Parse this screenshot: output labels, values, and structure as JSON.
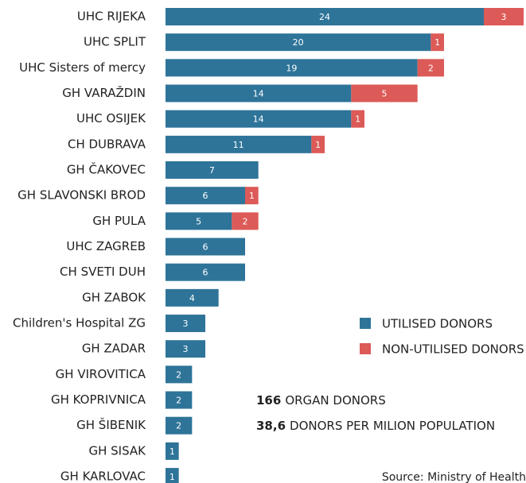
{
  "chart_data": {
    "type": "stacked-barh",
    "categories": [
      "UHC RIJEKA",
      "UHC SPLIT",
      "UHC Sisters of mercy",
      "GH VARAŽDIN",
      "UHC OSIJEK",
      "CH DUBRAVA",
      "GH ČAKOVEC",
      "GH SLAVONSKI BROD",
      "GH PULA",
      "UHC ZAGREB",
      "CH SVETI DUH",
      "GH ZABOK",
      "Children's Hospital ZG",
      "GH ZADAR",
      "GH VIROVITICA",
      "GH KOPRIVNICA",
      "GH ŠIBENIK",
      "GH SISAK",
      "GH KARLOVAC"
    ],
    "series": [
      {
        "name": "UTILISED DONORS",
        "color": "#2e7499",
        "values": [
          24,
          20,
          19,
          14,
          14,
          11,
          7,
          6,
          5,
          6,
          6,
          4,
          3,
          3,
          2,
          2,
          2,
          1,
          1
        ]
      },
      {
        "name": "NON-UTILISED DONORS",
        "color": "#dc5a57",
        "values": [
          3,
          1,
          2,
          5,
          1,
          1,
          null,
          1,
          2,
          null,
          null,
          null,
          null,
          null,
          null,
          null,
          null,
          null,
          null
        ]
      }
    ],
    "xlim": [
      0,
      27
    ],
    "annotations": [
      {
        "number": "166",
        "text": "ORGAN DONORS"
      },
      {
        "number": "38,6",
        "text": "DONORS PER MILION POPULATION"
      }
    ],
    "source": "Source: Ministry of Health"
  }
}
